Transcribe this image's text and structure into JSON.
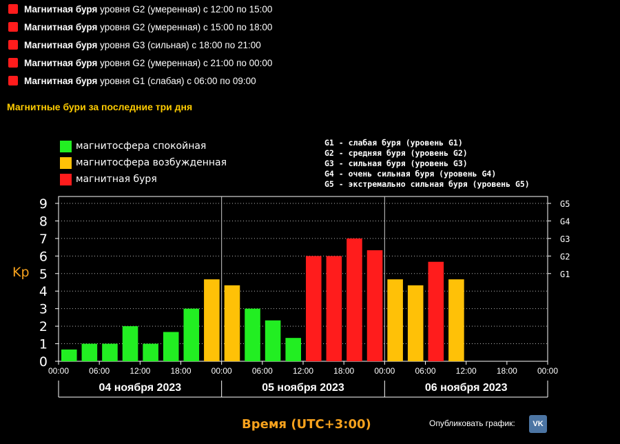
{
  "storms": [
    {
      "title": "Магнитная буря",
      "detail": " уровня G2 (умеренная) с 12:00 по 15:00"
    },
    {
      "title": "Магнитная буря",
      "detail": " уровня G2 (умеренная) с 15:00 по 18:00"
    },
    {
      "title": "Магнитная буря",
      "detail": " уровня G3 (сильная) с 18:00 по 21:00"
    },
    {
      "title": "Магнитная буря",
      "detail": " уровня G2 (умеренная) с 21:00 по 00:00"
    },
    {
      "title": "Магнитная буря",
      "detail": " уровня G1 (слабая) с 06:00 по 09:00"
    }
  ],
  "section_title": "Магнитные бури за последние три дня",
  "legend": [
    {
      "label": "магнитосфера спокойная",
      "color": "#22ee22"
    },
    {
      "label": "магнитосфера возбужденная",
      "color": "#ffc107"
    },
    {
      "label": "магнитная буря",
      "color": "#ff1c1c"
    }
  ],
  "g_levels": [
    "G1 - слабая буря (уровень G1)",
    "G2 - средняя буря (уровень G2)",
    "G3 - сильная буря (уровень G3)",
    "G4 - очень сильная буря (уровень G4)",
    "G5 - экстремально сильная буря (уровень G5)"
  ],
  "ylabel": "Kp",
  "xlabel": "Время (UTC+3:00)",
  "publish_label": "Опубликовать график:",
  "vk_icon_text": "VK",
  "chart_data": {
    "type": "bar",
    "ylim": [
      0,
      9
    ],
    "yticks": [
      "0",
      "1",
      "2",
      "3",
      "4",
      "5",
      "6",
      "7",
      "8",
      "9"
    ],
    "right_ticks": [
      {
        "y": 5,
        "label": "G1"
      },
      {
        "y": 6,
        "label": "G2"
      },
      {
        "y": 7,
        "label": "G3"
      },
      {
        "y": 8,
        "label": "G4"
      },
      {
        "y": 9,
        "label": "G5"
      }
    ],
    "x_tick_labels": [
      "00:00",
      "06:00",
      "12:00",
      "18:00",
      "00:00",
      "06:00",
      "12:00",
      "18:00",
      "00:00",
      "06:00",
      "12:00",
      "18:00",
      "00:00"
    ],
    "days": [
      "04 ноября 2023",
      "05 ноября 2023",
      "06 ноября 2023"
    ],
    "intervals_per_day": 8,
    "values": [
      0.67,
      1.0,
      1.0,
      2.0,
      1.0,
      1.67,
      3.0,
      4.67,
      4.33,
      3.0,
      2.33,
      1.33,
      6.0,
      6.0,
      7.0,
      6.33,
      4.67,
      4.33,
      5.67,
      4.67
    ],
    "thresholds": {
      "quiet_below": 4,
      "storm_from": 5
    },
    "colors": {
      "quiet": "#22ee22",
      "active": "#ffc107",
      "storm": "#ff1c1c"
    },
    "grid": true
  }
}
